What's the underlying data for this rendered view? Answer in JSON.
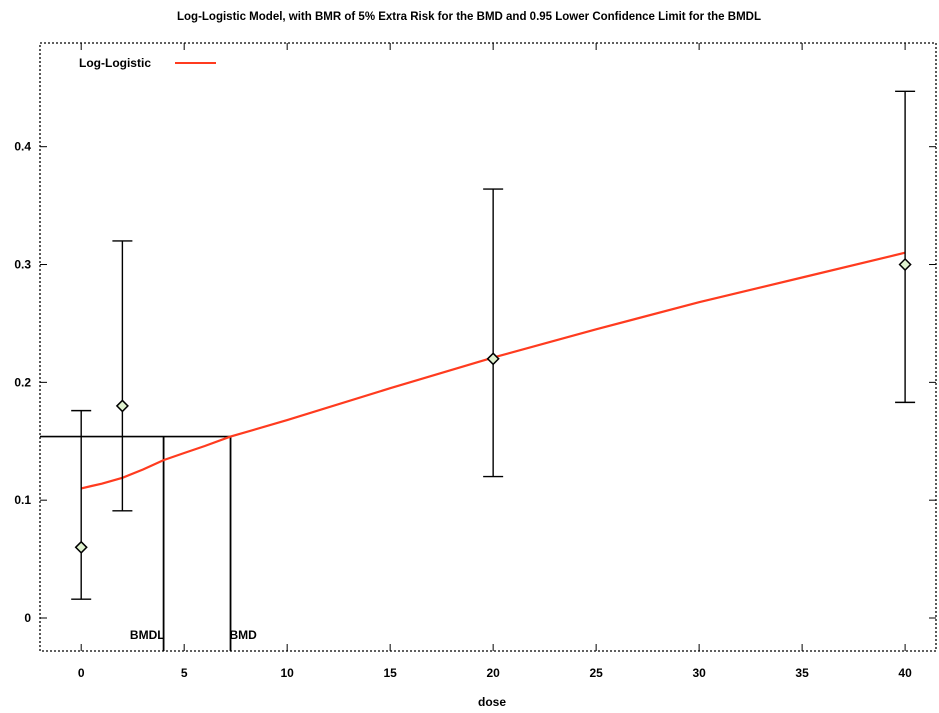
{
  "chart_data": {
    "type": "line",
    "title": "Log-Logistic Model, with BMR of 5% Extra Risk for the BMD and 0.95 Lower Confidence Limit for the BMDL",
    "xlabel": "dose",
    "ylabel": "",
    "xlim": [
      -2,
      41.5
    ],
    "ylim": [
      -0.028,
      0.488
    ],
    "xticks": [
      0,
      5,
      10,
      15,
      20,
      25,
      30,
      35,
      40
    ],
    "yticks": [
      0,
      0.1,
      0.2,
      0.3,
      0.4
    ],
    "grid": false,
    "legend": {
      "position": "top-left",
      "entries": [
        {
          "name": "Log-Logistic",
          "color": "#ff3b1f"
        }
      ]
    },
    "colors": {
      "model_line": "#ff3b1f",
      "marker_fill": "#dff2cf",
      "ink": "#000000"
    },
    "model_curve": {
      "name": "Log-Logistic",
      "x": [
        0,
        0.5,
        1,
        2,
        3,
        4,
        5,
        6,
        7.25,
        10,
        15,
        20,
        25,
        30,
        35,
        40
      ],
      "y": [
        0.11,
        0.112,
        0.114,
        0.119,
        0.126,
        0.134,
        0.14,
        0.146,
        0.154,
        0.168,
        0.195,
        0.221,
        0.245,
        0.268,
        0.289,
        0.31
      ]
    },
    "observed": [
      {
        "dose": 0,
        "response": 0.06,
        "lower": 0.016,
        "upper": 0.176
      },
      {
        "dose": 2,
        "response": 0.18,
        "lower": 0.091,
        "upper": 0.32
      },
      {
        "dose": 20,
        "response": 0.22,
        "lower": 0.12,
        "upper": 0.364
      },
      {
        "dose": 40,
        "response": 0.3,
        "lower": 0.183,
        "upper": 0.447
      }
    ],
    "bmr_response": 0.154,
    "bmd": {
      "label": "BMD",
      "dose": 7.25
    },
    "bmdl": {
      "label": "BMDL",
      "dose": 4.0
    }
  }
}
